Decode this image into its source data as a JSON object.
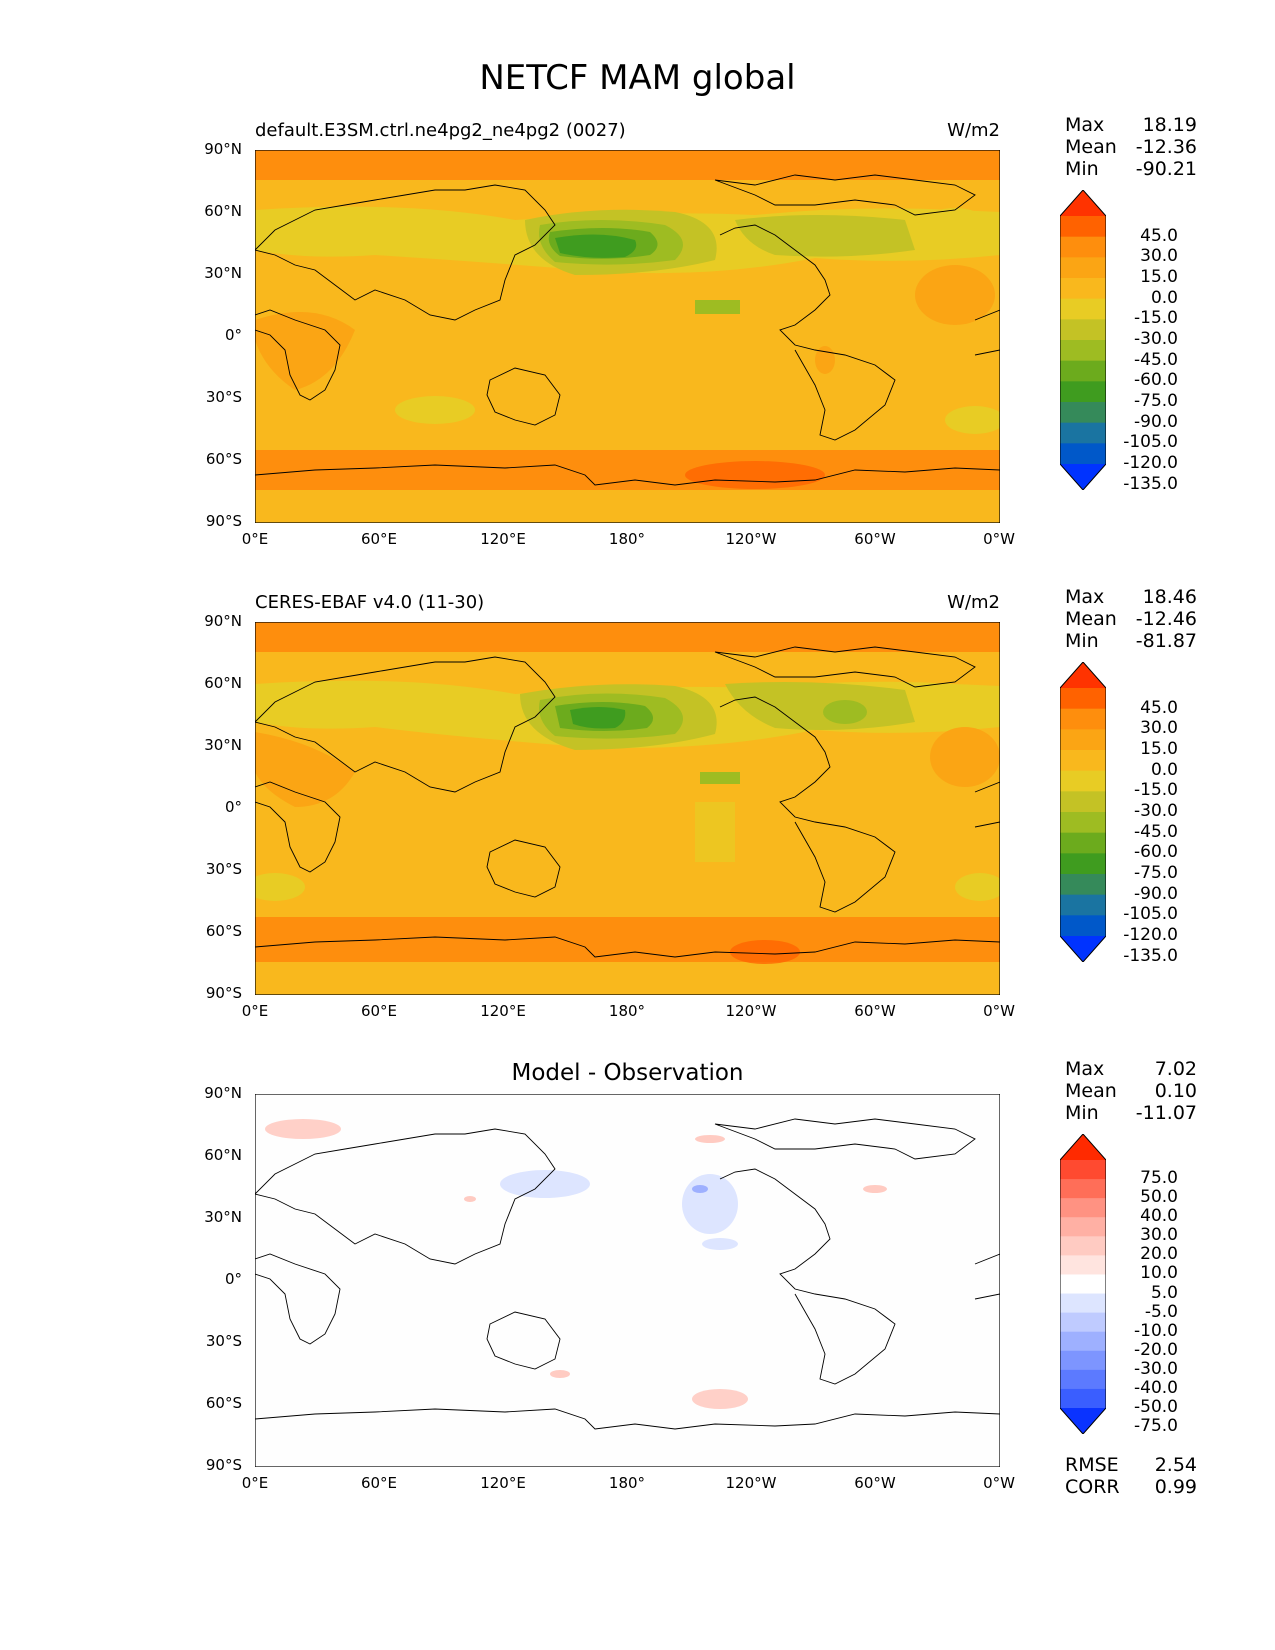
{
  "title": "NETCF MAM global",
  "panels": [
    {
      "label_left": "default.E3SM.ctrl.ne4pg2_ne4pg2 (0027)",
      "label_right": "W/m2",
      "label_center": "",
      "stats": {
        "max_label": "Max",
        "max": "18.19",
        "mean_label": "Mean",
        "mean": "-12.36",
        "min_label": "Min",
        "min": "-90.21"
      },
      "colorbar": {
        "levels": [
          "45.0",
          "30.0",
          "15.0",
          "0.0",
          "-15.0",
          "-30.0",
          "-45.0",
          "-60.0",
          "-75.0",
          "-90.0",
          "-105.0",
          "-120.0",
          "-135.0"
        ],
        "colors": [
          "#ff3300",
          "#ff6200",
          "#fe8e0d",
          "#fba514",
          "#f9b81d",
          "#e8cc24",
          "#c4c225",
          "#9ebc22",
          "#6cab1d",
          "#3f9c1f",
          "#358a5a",
          "#1a74a1",
          "#0058c9",
          "#0033ff"
        ]
      }
    },
    {
      "label_left": "CERES-EBAF v4.0 (11-30)",
      "label_right": "W/m2",
      "label_center": "",
      "stats": {
        "max_label": "Max",
        "max": "18.46",
        "mean_label": "Mean",
        "mean": "-12.46",
        "min_label": "Min",
        "min": "-81.87"
      },
      "colorbar": {
        "levels": [
          "45.0",
          "30.0",
          "15.0",
          "0.0",
          "-15.0",
          "-30.0",
          "-45.0",
          "-60.0",
          "-75.0",
          "-90.0",
          "-105.0",
          "-120.0",
          "-135.0"
        ],
        "colors": [
          "#ff3300",
          "#ff6200",
          "#fe8e0d",
          "#fba514",
          "#f9b81d",
          "#e8cc24",
          "#c4c225",
          "#9ebc22",
          "#6cab1d",
          "#3f9c1f",
          "#358a5a",
          "#1a74a1",
          "#0058c9",
          "#0033ff"
        ]
      }
    },
    {
      "label_left": "",
      "label_right": "",
      "label_center": "Model - Observation",
      "stats": {
        "max_label": "Max",
        "max": "7.02",
        "mean_label": "Mean",
        "mean": "0.10",
        "min_label": "Min",
        "min": "-11.07"
      },
      "colorbar": {
        "levels": [
          "75.0",
          "50.0",
          "40.0",
          "30.0",
          "20.0",
          "10.0",
          "5.0",
          "-5.0",
          "-10.0",
          "-20.0",
          "-30.0",
          "-40.0",
          "-50.0",
          "-75.0"
        ],
        "colors": [
          "#ff2a00",
          "#ff4a30",
          "#ff6e58",
          "#ff9282",
          "#ffb0a4",
          "#ffcbc2",
          "#ffe4df",
          "#ffffff",
          "#dde5ff",
          "#bfcbff",
          "#9eb0ff",
          "#7d95ff",
          "#5c7aff",
          "#3a5eff",
          "#0a33ff"
        ]
      },
      "metrics": {
        "rmse_label": "RMSE",
        "rmse": "2.54",
        "corr_label": "CORR",
        "corr": "0.99"
      }
    }
  ],
  "axes": {
    "lat_ticks": [
      "90°N",
      "60°N",
      "30°N",
      "0°",
      "30°S",
      "60°S",
      "90°S"
    ],
    "lon_ticks": [
      "0°E",
      "60°E",
      "120°E",
      "180°",
      "120°W",
      "60°W",
      "0°W"
    ]
  },
  "colors": {
    "ocean_base": "#f9b81d",
    "high_lat_band": "#fe8e0d",
    "storm_track": "#3f9c1f"
  }
}
